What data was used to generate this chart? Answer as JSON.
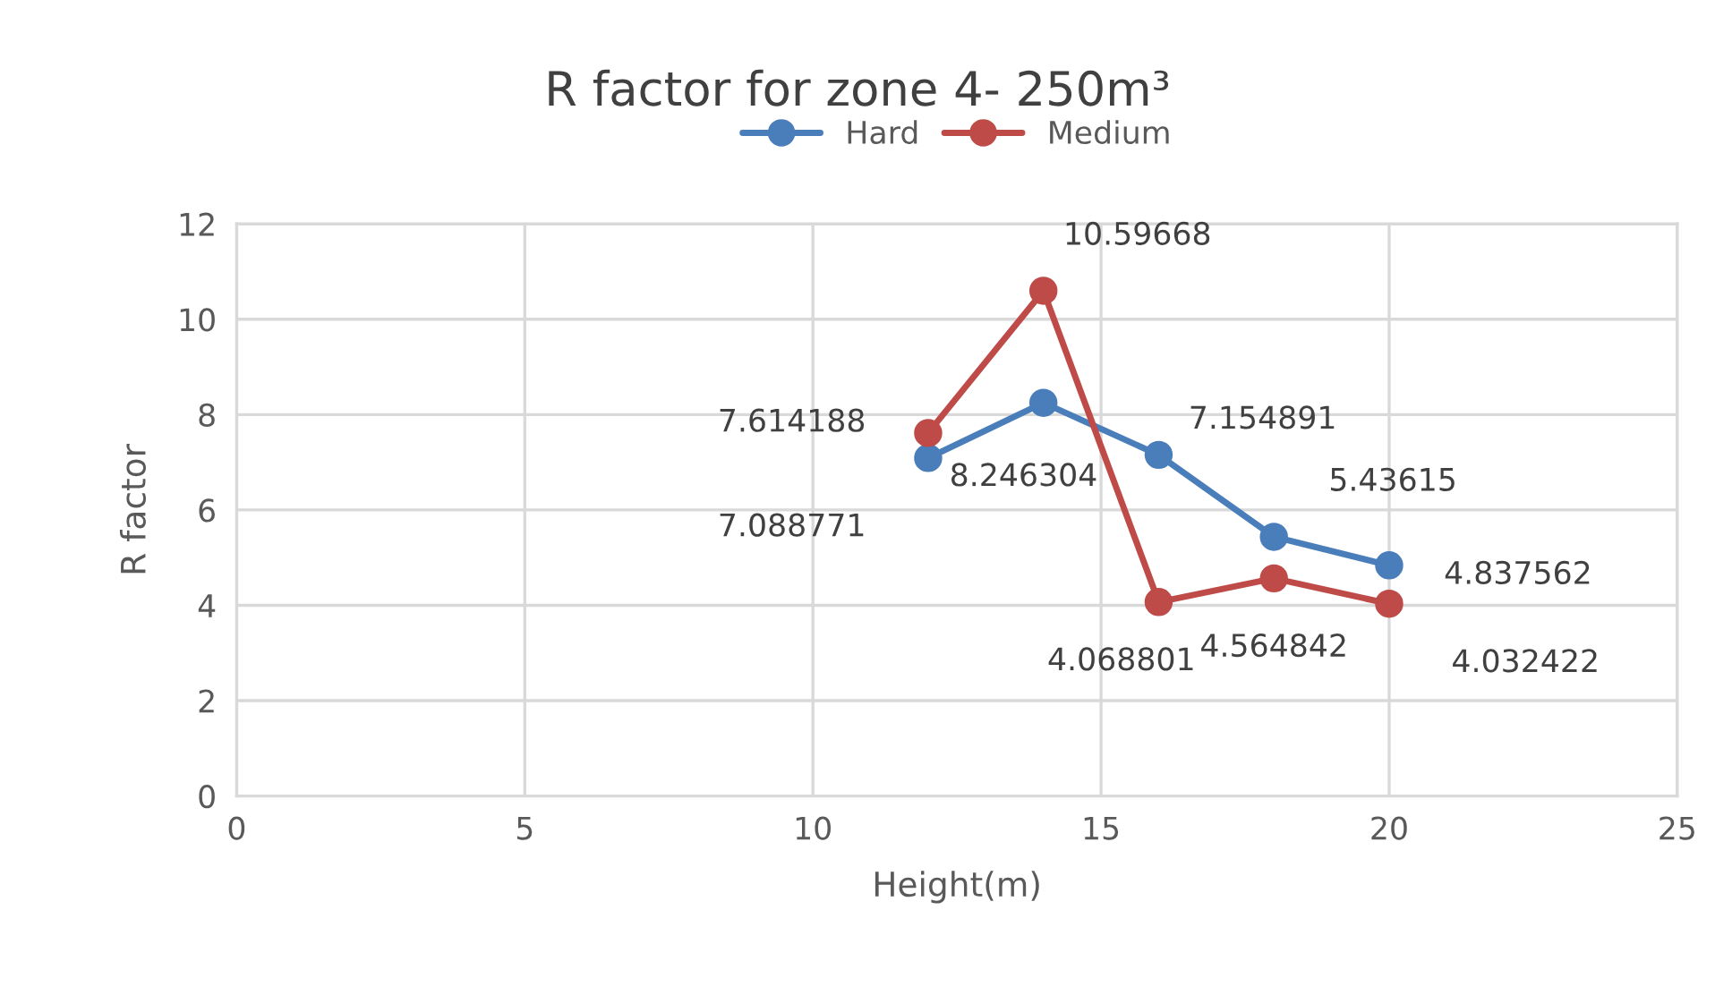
{
  "chart_data": {
    "type": "line",
    "title": "R factor for zone 4- 250m³",
    "xlabel": "Height(m)",
    "ylabel": "R factor",
    "x": [
      12,
      14,
      16,
      18,
      20
    ],
    "series": [
      {
        "name": "Hard",
        "color": "#4a7ebb",
        "values": [
          7.088771,
          8.246304,
          7.154891,
          5.43615,
          4.837562
        ]
      },
      {
        "name": "Medium",
        "color": "#be4b48",
        "values": [
          7.614188,
          10.59668,
          4.068801,
          4.564842,
          4.032422
        ]
      }
    ],
    "xlim": [
      0,
      25
    ],
    "xticks": [
      0,
      5,
      10,
      15,
      20,
      25
    ],
    "ylim": [
      0,
      12
    ],
    "yticks": [
      0,
      2,
      4,
      6,
      8,
      10,
      12
    ],
    "grid": true,
    "legend": "top",
    "marker": "circle",
    "line_style": "solid",
    "data_labels": true
  }
}
